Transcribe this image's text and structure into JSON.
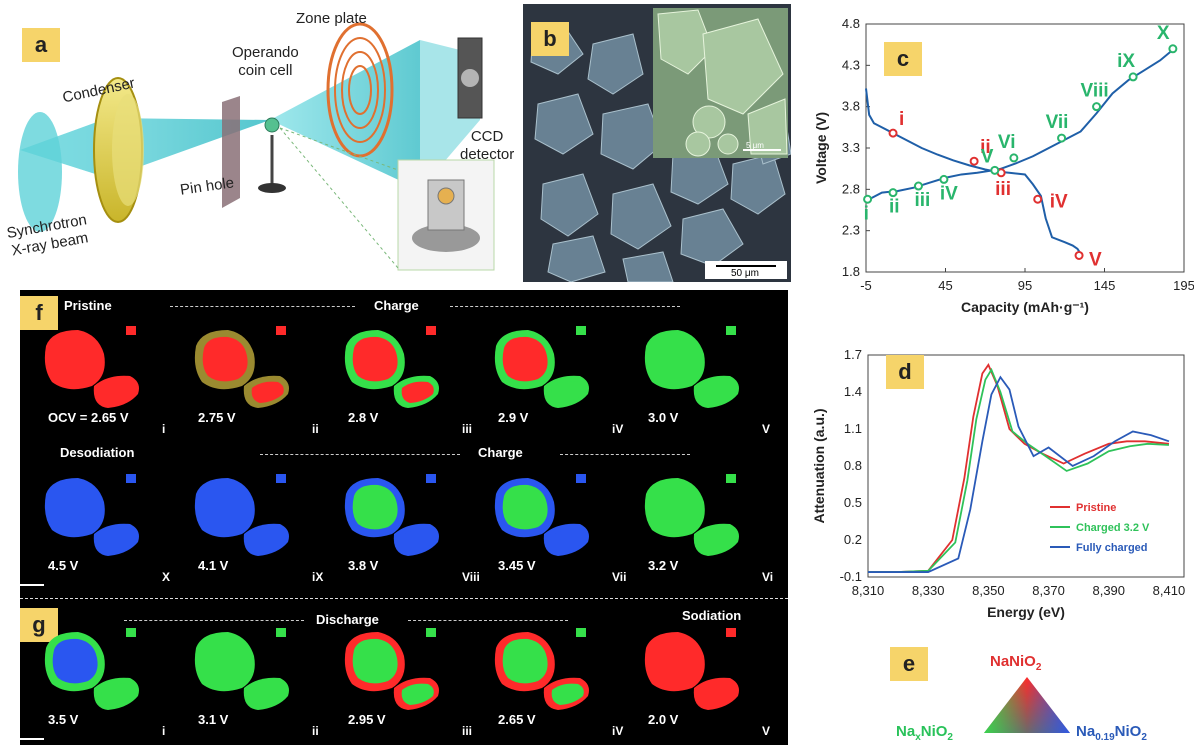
{
  "panel_labels": {
    "a": "a",
    "b": "b",
    "c": "c",
    "d": "d",
    "e": "e",
    "f": "f",
    "g": "g"
  },
  "panel_a": {
    "condenser": "Condenser",
    "operando_line1": "Operando",
    "operando_line2": "coin cell",
    "zone_plate": "Zone plate",
    "ccd_line1": "CCD",
    "ccd_line2": "detector",
    "pin_hole": "Pin hole",
    "synch_line1": "Synchrotron",
    "synch_line2": "X-ray beam"
  },
  "panel_b": {
    "scale_inset": "5 μm",
    "scale_main": "50 μm"
  },
  "panel_f": {
    "top_left": "Pristine",
    "top_mid": "Charge",
    "bot_left": "Desodiation",
    "bot_mid": "Charge",
    "row1": [
      {
        "v": "OCV = 2.65 V",
        "r": "i",
        "state": "red"
      },
      {
        "v": "2.75 V",
        "r": "ii",
        "state": "red-edge"
      },
      {
        "v": "2.8 V",
        "r": "iii",
        "state": "green-red"
      },
      {
        "v": "2.9 V",
        "r": "iV",
        "state": "green-red2"
      },
      {
        "v": "3.0 V",
        "r": "V",
        "state": "green"
      }
    ],
    "row2": [
      {
        "v": "4.5 V",
        "r": "X",
        "state": "blue"
      },
      {
        "v": "4.1 V",
        "r": "iX",
        "state": "blue"
      },
      {
        "v": "3.8 V",
        "r": "Viii",
        "state": "blue-green"
      },
      {
        "v": "3.45 V",
        "r": "Vii",
        "state": "blue-green2"
      },
      {
        "v": "3.2 V",
        "r": "Vi",
        "state": "green"
      }
    ]
  },
  "panel_g": {
    "mid": "Discharge",
    "right": "Sodiation",
    "row": [
      {
        "v": "3.5 V",
        "r": "i",
        "state": "green-blue"
      },
      {
        "v": "3.1 V",
        "r": "ii",
        "state": "green"
      },
      {
        "v": "2.95 V",
        "r": "iii",
        "state": "red-green"
      },
      {
        "v": "2.65 V",
        "r": "iV",
        "state": "red-green2"
      },
      {
        "v": "2.0 V",
        "r": "V",
        "state": "red"
      }
    ]
  },
  "chart_data": [
    {
      "type": "line",
      "panel": "c",
      "xlabel": "Capacity (mAh·g⁻¹)",
      "ylabel": "Voltage (V)",
      "xlim": [
        -5,
        195
      ],
      "ylim": [
        1.8,
        4.8
      ],
      "xticks": [
        -5,
        45,
        95,
        145,
        195
      ],
      "yticks": [
        1.8,
        2.3,
        2.8,
        3.3,
        3.8,
        4.3,
        4.8
      ],
      "series": [
        {
          "color": "#1f5fa8",
          "x": [
            -5,
            -3,
            0,
            10,
            20,
            30,
            40,
            50,
            60,
            70,
            75
          ],
          "y": [
            4.02,
            3.7,
            3.6,
            3.5,
            3.4,
            3.3,
            3.22,
            3.15,
            3.09,
            3.04,
            3.02
          ]
        },
        {
          "color": "#1f5fa8",
          "x": [
            -3,
            5,
            15,
            25,
            35,
            45,
            55,
            65,
            75,
            80
          ],
          "y": [
            2.68,
            2.76,
            2.78,
            2.82,
            2.88,
            2.94,
            2.98,
            3.0,
            3.03,
            3.05
          ]
        },
        {
          "color": "#1f5fa8",
          "x": [
            75,
            85,
            95,
            100,
            105,
            108,
            112,
            120,
            125,
            128,
            130
          ],
          "y": [
            3.02,
            3.0,
            2.98,
            2.86,
            2.72,
            2.45,
            2.22,
            2.16,
            2.12,
            2.08,
            2.02
          ]
        },
        {
          "color": "#1f5fa8",
          "x": [
            80,
            90,
            100,
            110,
            120,
            130,
            140,
            150,
            160,
            170,
            180,
            190
          ],
          "y": [
            3.05,
            3.12,
            3.2,
            3.3,
            3.4,
            3.5,
            3.72,
            3.96,
            4.12,
            4.24,
            4.36,
            4.52
          ]
        }
      ],
      "markers": [
        {
          "x": 12,
          "y": 3.48,
          "color": "#e03030",
          "label": "i"
        },
        {
          "x": 63,
          "y": 3.14,
          "color": "#e03030",
          "label": "ii"
        },
        {
          "x": 80,
          "y": 3.0,
          "color": "#e03030",
          "label": "iii"
        },
        {
          "x": 103,
          "y": 2.68,
          "color": "#e03030",
          "label": "iV"
        },
        {
          "x": 129,
          "y": 2.0,
          "color": "#e03030",
          "label": "V"
        },
        {
          "x": -4,
          "y": 2.68,
          "color": "#29b56c",
          "label": "i"
        },
        {
          "x": 12,
          "y": 2.76,
          "color": "#29b56c",
          "label": "ii"
        },
        {
          "x": 28,
          "y": 2.84,
          "color": "#29b56c",
          "label": "iii"
        },
        {
          "x": 44,
          "y": 2.92,
          "color": "#29b56c",
          "label": "iV"
        },
        {
          "x": 76,
          "y": 3.03,
          "color": "#29b56c",
          "label": "V"
        },
        {
          "x": 88,
          "y": 3.18,
          "color": "#29b56c",
          "label": "Vi"
        },
        {
          "x": 118,
          "y": 3.42,
          "color": "#29b56c",
          "label": "Vii"
        },
        {
          "x": 140,
          "y": 3.8,
          "color": "#29b56c",
          "label": "Viii"
        },
        {
          "x": 163,
          "y": 4.16,
          "color": "#29b56c",
          "label": "iX"
        },
        {
          "x": 188,
          "y": 4.5,
          "color": "#29b56c",
          "label": "X"
        }
      ]
    },
    {
      "type": "line",
      "panel": "d",
      "xlabel": "Energy (eV)",
      "ylabel": "Attenuation (a.u.)",
      "xlim": [
        8310,
        8415
      ],
      "ylim": [
        -0.1,
        1.7
      ],
      "xticks": [
        8310,
        8330,
        8350,
        8370,
        8390,
        8410
      ],
      "yticks": [
        -0.1,
        0.2,
        0.5,
        0.8,
        1.1,
        1.4,
        1.7
      ],
      "legend": "bottom-right",
      "series": [
        {
          "name": "Pristine",
          "color": "#e03030",
          "x": [
            8310,
            8320,
            8330,
            8338,
            8342,
            8345,
            8348,
            8350,
            8353,
            8357,
            8362,
            8368,
            8375,
            8382,
            8390,
            8396,
            8402,
            8410
          ],
          "y": [
            -0.06,
            -0.06,
            -0.05,
            0.2,
            0.7,
            1.2,
            1.55,
            1.62,
            1.45,
            1.1,
            0.98,
            0.9,
            0.82,
            0.9,
            0.98,
            1.0,
            1.0,
            0.98
          ]
        },
        {
          "name": "Charged 3.2 V",
          "color": "#2fc25a",
          "x": [
            8310,
            8320,
            8330,
            8339,
            8343,
            8346,
            8349,
            8351,
            8354,
            8358,
            8363,
            8369,
            8376,
            8383,
            8390,
            8397,
            8403,
            8410
          ],
          "y": [
            -0.06,
            -0.06,
            -0.05,
            0.18,
            0.68,
            1.18,
            1.5,
            1.58,
            1.4,
            1.08,
            0.98,
            0.88,
            0.76,
            0.82,
            0.92,
            0.96,
            0.98,
            0.97
          ]
        },
        {
          "name": "Fully charged",
          "color": "#2a5ab8",
          "x": [
            8310,
            8320,
            8330,
            8340,
            8344,
            8348,
            8351,
            8354,
            8357,
            8360,
            8365,
            8370,
            8378,
            8385,
            8392,
            8398,
            8404,
            8410
          ],
          "y": [
            -0.06,
            -0.06,
            -0.06,
            0.05,
            0.45,
            1.0,
            1.38,
            1.52,
            1.42,
            1.12,
            0.88,
            0.95,
            0.8,
            0.88,
            1.0,
            1.08,
            1.05,
            1.0
          ]
        }
      ]
    }
  ],
  "panel_e": {
    "top_main": "NaNiO",
    "top_sub": "2",
    "left_main": "Na",
    "left_sub1": "x",
    "left_mid": "NiO",
    "left_sub2": "2",
    "right_main": "Na",
    "right_sub1": "0.19",
    "right_mid": "NiO",
    "right_sub2": "2"
  },
  "colors": {
    "red": "#ff2a2a",
    "green": "#35e04a",
    "blue": "#2a56f0",
    "tag": "#f6d46a",
    "curve": "#1f5fa8"
  }
}
